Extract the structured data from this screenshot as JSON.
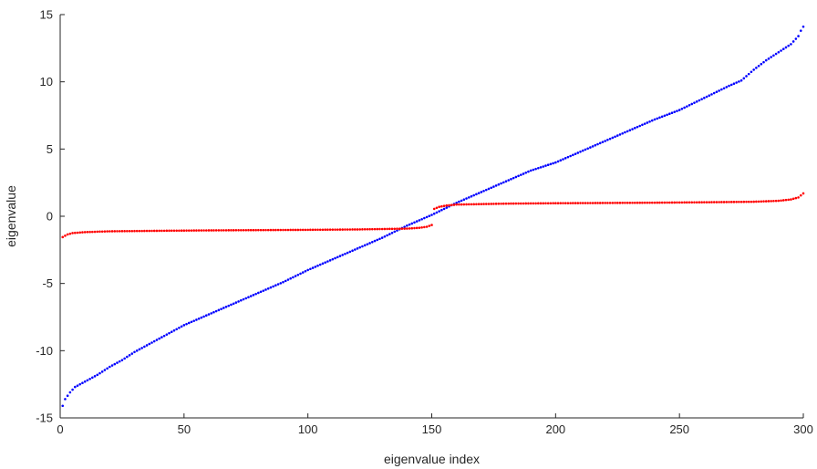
{
  "chart_data": {
    "type": "scatter",
    "title": "",
    "xlabel": "eigenvalue index",
    "ylabel": "eigenvalue",
    "xlim": [
      0,
      300
    ],
    "ylim": [
      -15,
      15
    ],
    "xticks": [
      0,
      50,
      100,
      150,
      200,
      250,
      300
    ],
    "yticks": [
      -15,
      -10,
      -5,
      0,
      5,
      10,
      15
    ],
    "grid": false,
    "legend": "none",
    "colors": {
      "blue_series": "#0000ff",
      "red_series": "#ff0000",
      "axes": "#262626"
    },
    "series": [
      {
        "color": "#0000ff",
        "points": [
          [
            1,
            -14.1
          ],
          [
            2,
            -13.6
          ],
          [
            4,
            -13.1
          ],
          [
            6,
            -12.7
          ],
          [
            10,
            -12.3
          ],
          [
            15,
            -11.8
          ],
          [
            20,
            -11.2
          ],
          [
            25,
            -10.7
          ],
          [
            30,
            -10.1
          ],
          [
            35,
            -9.6
          ],
          [
            40,
            -9.1
          ],
          [
            45,
            -8.6
          ],
          [
            50,
            -8.1
          ],
          [
            60,
            -7.3
          ],
          [
            70,
            -6.5
          ],
          [
            80,
            -5.7
          ],
          [
            90,
            -4.9
          ],
          [
            100,
            -4.0
          ],
          [
            110,
            -3.2
          ],
          [
            120,
            -2.4
          ],
          [
            130,
            -1.6
          ],
          [
            140,
            -0.7
          ],
          [
            145,
            -0.3
          ],
          [
            150,
            0.1
          ],
          [
            160,
            1.0
          ],
          [
            170,
            1.8
          ],
          [
            180,
            2.6
          ],
          [
            190,
            3.4
          ],
          [
            200,
            4.0
          ],
          [
            210,
            4.8
          ],
          [
            220,
            5.6
          ],
          [
            230,
            6.4
          ],
          [
            240,
            7.2
          ],
          [
            250,
            7.9
          ],
          [
            260,
            8.8
          ],
          [
            270,
            9.7
          ],
          [
            275,
            10.1
          ],
          [
            280,
            10.9
          ],
          [
            285,
            11.6
          ],
          [
            290,
            12.2
          ],
          [
            295,
            12.8
          ],
          [
            298,
            13.4
          ],
          [
            299,
            13.8
          ],
          [
            300,
            14.1
          ]
        ]
      },
      {
        "color": "#ff0000",
        "points": [
          [
            1,
            -1.55
          ],
          [
            2,
            -1.45
          ],
          [
            3,
            -1.35
          ],
          [
            5,
            -1.25
          ],
          [
            10,
            -1.18
          ],
          [
            20,
            -1.12
          ],
          [
            40,
            -1.08
          ],
          [
            60,
            -1.05
          ],
          [
            80,
            -1.03
          ],
          [
            100,
            -1.01
          ],
          [
            120,
            -0.98
          ],
          [
            140,
            -0.92
          ],
          [
            145,
            -0.86
          ],
          [
            148,
            -0.78
          ],
          [
            150,
            -0.65
          ],
          [
            151,
            0.55
          ],
          [
            153,
            0.7
          ],
          [
            156,
            0.8
          ],
          [
            160,
            0.87
          ],
          [
            180,
            0.94
          ],
          [
            200,
            0.97
          ],
          [
            220,
            0.99
          ],
          [
            240,
            1.01
          ],
          [
            260,
            1.04
          ],
          [
            280,
            1.08
          ],
          [
            290,
            1.15
          ],
          [
            295,
            1.25
          ],
          [
            298,
            1.4
          ],
          [
            299,
            1.55
          ],
          [
            300,
            1.7
          ]
        ]
      }
    ]
  }
}
